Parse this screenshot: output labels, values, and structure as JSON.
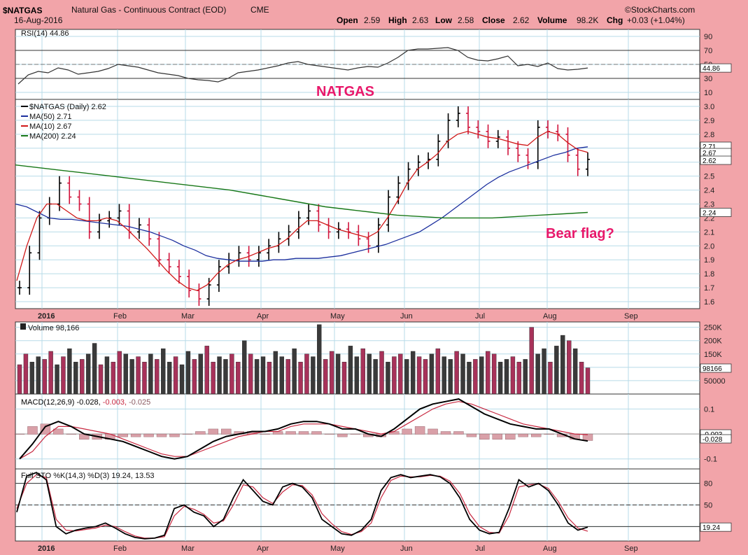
{
  "header": {
    "symbol": "$NATGAS",
    "name": "Natural Gas - Continuous Contract (EOD)",
    "exchange": "CME",
    "date": "16-Aug-2016",
    "brand": "©StockCharts.com",
    "open_label": "Open",
    "open": "2.59",
    "high_label": "High",
    "high": "2.63",
    "low_label": "Low",
    "low": "2.58",
    "close_label": "Close",
    "close": "2.62",
    "volume_label": "Volume",
    "volume": "98.2K",
    "chg_label": "Chg",
    "chg": "+0.03 (+1.04%)"
  },
  "annotations": {
    "title": "NATGAS",
    "note": "Bear flag?"
  },
  "colors": {
    "background": "#f2a4a9",
    "up": "#000000",
    "down": "#d0143c",
    "ma50": "#1c2f9e",
    "ma10": "#d01818",
    "ma200": "#187818",
    "vol_up": "#3a3a3a",
    "vol_down": "#a8325a",
    "annotation": "#e8186a"
  },
  "chart_data": [
    {
      "type": "line",
      "panel": "rsi",
      "legend": "RSI(14) 44.86",
      "current_label": "44.86",
      "ylim": [
        0,
        100
      ],
      "yticks": [
        "90",
        "70",
        "50",
        "30",
        "10"
      ],
      "reference_lines": [
        70,
        30
      ],
      "series": [
        {
          "name": "RSI(14)",
          "values": [
            22,
            35,
            40,
            38,
            45,
            42,
            36,
            38,
            40,
            44,
            50,
            48,
            46,
            42,
            38,
            36,
            34,
            30,
            28,
            27,
            25,
            30,
            38,
            40,
            42,
            45,
            48,
            52,
            54,
            50,
            48,
            46,
            44,
            42,
            45,
            47,
            46,
            52,
            60,
            70,
            72,
            72,
            73,
            74,
            70,
            60,
            56,
            55,
            58,
            62,
            48,
            50,
            47,
            52,
            44,
            42,
            43,
            44.86
          ]
        }
      ]
    },
    {
      "type": "line",
      "panel": "price",
      "legend": [
        "$NATGAS (Daily) 2.62",
        "MA(50) 2.71",
        "MA(10) 2.67",
        "MA(200) 2.24"
      ],
      "current_labels": [
        "2.71",
        "2.67",
        "2.62",
        "2.24"
      ],
      "ylim": [
        1.55,
        3.05
      ],
      "yticks": [
        "3.0",
        "2.9",
        "2.8",
        "2.7",
        "2.6",
        "2.5",
        "2.4",
        "2.3",
        "2.2",
        "2.1",
        "2.0",
        "1.9",
        "1.8",
        "1.7",
        "1.6"
      ],
      "xticks": [
        "2016",
        "Feb",
        "Mar",
        "Apr",
        "May",
        "Jun",
        "Jul",
        "Aug",
        "Sep"
      ],
      "series": [
        {
          "name": "$NATGAS",
          "values": [
            1.7,
            1.95,
            2.2,
            2.3,
            2.45,
            2.35,
            2.3,
            2.1,
            2.18,
            2.2,
            2.25,
            2.1,
            2.15,
            2.05,
            1.9,
            1.85,
            1.78,
            1.68,
            1.62,
            1.72,
            1.85,
            1.9,
            1.95,
            1.9,
            1.95,
            2.0,
            2.05,
            2.1,
            2.2,
            2.25,
            2.15,
            2.1,
            2.12,
            2.1,
            2.05,
            2.0,
            2.15,
            2.35,
            2.45,
            2.55,
            2.6,
            2.62,
            2.75,
            2.9,
            2.95,
            2.85,
            2.82,
            2.75,
            2.78,
            2.7,
            2.65,
            2.6,
            2.85,
            2.82,
            2.8,
            2.65,
            2.55,
            2.62
          ]
        },
        {
          "name": "MA(50)",
          "values": [
            2.3,
            2.28,
            2.24,
            2.2,
            2.19,
            2.19,
            2.18,
            2.17,
            2.16,
            2.15,
            2.14,
            2.12,
            2.1,
            2.07,
            2.04,
            2.0,
            1.97,
            1.93,
            1.91,
            1.9,
            1.89,
            1.89,
            1.89,
            1.9,
            1.9,
            1.91,
            1.91,
            1.91,
            1.92,
            1.93,
            1.95,
            1.97,
            1.99,
            2.01,
            2.04,
            2.07,
            2.1,
            2.15,
            2.2,
            2.26,
            2.32,
            2.38,
            2.44,
            2.49,
            2.53,
            2.56,
            2.59,
            2.62,
            2.65,
            2.67,
            2.7,
            2.71
          ]
        },
        {
          "name": "MA(10)",
          "values": [
            1.75,
            2.0,
            2.2,
            2.3,
            2.3,
            2.25,
            2.2,
            2.18,
            2.18,
            2.2,
            2.18,
            2.12,
            2.05,
            1.98,
            1.9,
            1.82,
            1.75,
            1.7,
            1.68,
            1.72,
            1.8,
            1.86,
            1.9,
            1.92,
            1.95,
            1.98,
            2.0,
            2.05,
            2.12,
            2.18,
            2.18,
            2.15,
            2.12,
            2.1,
            2.08,
            2.06,
            2.1,
            2.2,
            2.32,
            2.45,
            2.55,
            2.6,
            2.66,
            2.75,
            2.8,
            2.82,
            2.8,
            2.78,
            2.77,
            2.75,
            2.73,
            2.72,
            2.78,
            2.82,
            2.8,
            2.74,
            2.69,
            2.67
          ]
        },
        {
          "name": "MA(200)",
          "values": [
            2.58,
            2.56,
            2.54,
            2.52,
            2.5,
            2.48,
            2.46,
            2.44,
            2.42,
            2.4,
            2.37,
            2.34,
            2.31,
            2.28,
            2.26,
            2.24,
            2.22,
            2.21,
            2.2,
            2.2,
            2.2,
            2.21,
            2.22,
            2.23,
            2.24
          ]
        }
      ]
    },
    {
      "type": "bar",
      "panel": "volume",
      "legend": "Volume 98,166",
      "current_label": "98166",
      "ylim": [
        0,
        270000
      ],
      "yticks": [
        "250K",
        "200K",
        "150K",
        "100K",
        "50000"
      ],
      "series": [
        {
          "name": "Volume",
          "values": [
            110000,
            150000,
            120000,
            140000,
            130000,
            160000,
            110000,
            140000,
            170000,
            120000,
            130000,
            150000,
            190000,
            110000,
            140000,
            120000,
            160000,
            150000,
            130000,
            140000,
            120000,
            150000,
            130000,
            170000,
            120000,
            140000,
            110000,
            160000,
            130000,
            150000,
            180000,
            120000,
            140000,
            130000,
            150000,
            120000,
            200000,
            150000,
            130000,
            140000,
            120000,
            160000,
            140000,
            130000,
            170000,
            120000,
            150000,
            140000,
            260000,
            130000,
            160000,
            150000,
            120000,
            180000,
            140000,
            170000,
            150000,
            130000,
            160000,
            120000,
            140000,
            150000,
            130000,
            160000,
            140000,
            130000,
            150000,
            170000,
            140000,
            130000,
            160000,
            150000,
            120000,
            130000,
            140000,
            160000,
            150000,
            120000,
            130000,
            140000,
            120000,
            130000,
            250000,
            150000,
            170000,
            120000,
            180000,
            220000,
            200000,
            170000,
            120000,
            98166
          ]
        }
      ]
    },
    {
      "type": "line",
      "panel": "macd",
      "legend": [
        "MACD(12,26,9) -0.028,",
        "-0.003,",
        "-0.025"
      ],
      "current_labels": [
        "-0.003",
        "-0.028"
      ],
      "ylim": [
        -0.14,
        0.16
      ],
      "yticks": [
        "0.1",
        "-0.1"
      ],
      "series": [
        {
          "name": "MACD",
          "values": [
            -0.1,
            -0.04,
            0.03,
            0.05,
            0.03,
            0.0,
            -0.01,
            -0.02,
            -0.03,
            -0.05,
            -0.07,
            -0.09,
            -0.1,
            -0.09,
            -0.06,
            -0.03,
            -0.01,
            0.0,
            0.01,
            0.01,
            0.02,
            0.04,
            0.05,
            0.05,
            0.04,
            0.02,
            0.02,
            0.0,
            -0.01,
            0.02,
            0.06,
            0.1,
            0.12,
            0.13,
            0.14,
            0.11,
            0.08,
            0.06,
            0.04,
            0.03,
            0.02,
            0.02,
            0.0,
            -0.02,
            -0.028
          ]
        },
        {
          "name": "Signal",
          "values": [
            -0.1,
            -0.07,
            -0.01,
            0.03,
            0.03,
            0.02,
            0.01,
            0.0,
            -0.02,
            -0.04,
            -0.06,
            -0.08,
            -0.09,
            -0.09,
            -0.07,
            -0.05,
            -0.03,
            -0.01,
            0.0,
            0.01,
            0.01,
            0.03,
            0.04,
            0.04,
            0.04,
            0.03,
            0.02,
            0.01,
            0.0,
            0.01,
            0.04,
            0.07,
            0.1,
            0.12,
            0.13,
            0.12,
            0.1,
            0.08,
            0.06,
            0.04,
            0.03,
            0.02,
            0.01,
            0.0,
            -0.003
          ]
        },
        {
          "name": "Histogram",
          "values": [
            0.0,
            0.03,
            0.04,
            0.02,
            0.0,
            -0.02,
            -0.02,
            -0.02,
            -0.01,
            -0.01,
            -0.01,
            -0.01,
            -0.01,
            0.0,
            0.01,
            0.02,
            0.02,
            0.01,
            0.01,
            0.0,
            0.01,
            0.01,
            0.01,
            0.01,
            0.0,
            -0.01,
            0.0,
            -0.01,
            -0.01,
            0.01,
            0.02,
            0.03,
            0.02,
            0.01,
            0.01,
            -0.01,
            -0.02,
            -0.02,
            -0.02,
            -0.01,
            -0.01,
            0.0,
            -0.01,
            -0.02,
            -0.025
          ]
        }
      ]
    },
    {
      "type": "line",
      "panel": "stochastic",
      "legend": "Full STO %K(14,3) %D(3) 19.24, 13.53",
      "current_label": "19.24",
      "ylim": [
        0,
        100
      ],
      "yticks": [
        "80",
        "50",
        "20"
      ],
      "reference_lines": [
        80,
        50,
        20
      ],
      "series": [
        {
          "name": "%K",
          "values": [
            40,
            90,
            95,
            85,
            20,
            10,
            15,
            18,
            20,
            25,
            18,
            10,
            5,
            3,
            4,
            8,
            45,
            50,
            40,
            35,
            20,
            30,
            60,
            85,
            70,
            55,
            50,
            75,
            80,
            75,
            60,
            30,
            20,
            10,
            8,
            15,
            30,
            70,
            88,
            92,
            88,
            90,
            92,
            89,
            80,
            60,
            30,
            15,
            10,
            12,
            45,
            85,
            75,
            80,
            70,
            50,
            25,
            15,
            19.24
          ]
        },
        {
          "name": "%D",
          "values": [
            45,
            80,
            92,
            88,
            30,
            15,
            14,
            16,
            18,
            22,
            20,
            13,
            7,
            4,
            4,
            6,
            35,
            48,
            44,
            37,
            25,
            28,
            50,
            78,
            75,
            60,
            52,
            68,
            78,
            77,
            64,
            38,
            24,
            13,
            9,
            13,
            25,
            60,
            84,
            90,
            89,
            89,
            91,
            90,
            83,
            66,
            38,
            20,
            12,
            11,
            35,
            75,
            78,
            79,
            73,
            55,
            32,
            18,
            13.53
          ]
        }
      ]
    }
  ]
}
